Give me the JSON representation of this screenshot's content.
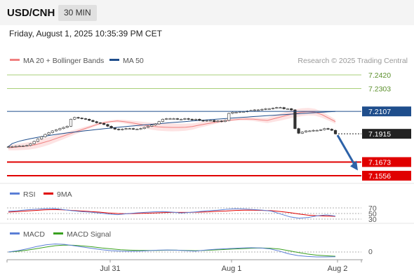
{
  "header": {
    "symbol": "USD/CNH",
    "timeframe": "30 MIN",
    "datetime": "Friday, August 1, 2025 10:35:39 PM CET"
  },
  "legend": {
    "ma20": "MA 20 + Bollinger Bands",
    "ma50": "MA 50",
    "credit": "Research © 2025 Trading Central"
  },
  "colors": {
    "ma20": "#f08080",
    "ma50": "#1f4e8c",
    "band_fill": "#fde3e3",
    "resistance": "#a8cf78",
    "support": "#e00000",
    "current": "#222222",
    "arrow": "#2d62a8",
    "rsi": "#5b7fd6",
    "rsi_ma": "#e00000",
    "macd": "#5b7fd6",
    "macd_signal": "#3aa020",
    "candle_up": "#3a9a3a",
    "candle_down": "#cc2222"
  },
  "price_levels": [
    {
      "label": "7.2420",
      "value": 7.242,
      "kind": "resistance"
    },
    {
      "label": "7.2303",
      "value": 7.2303,
      "kind": "resistance"
    },
    {
      "label": "7.2107",
      "value": 7.2107,
      "kind": "ma50"
    },
    {
      "label": "7.1915",
      "value": 7.1915,
      "kind": "current"
    },
    {
      "label": "7.1673",
      "value": 7.1673,
      "kind": "support"
    },
    {
      "label": "7.1556",
      "value": 7.1556,
      "kind": "support"
    }
  ],
  "rsi_panel": {
    "label": "RSI",
    "ma_label": "9MA",
    "levels": [
      "70",
      "50",
      "30"
    ]
  },
  "macd_panel": {
    "label": "MACD",
    "signal_label": "MACD Signal",
    "zero_label": "0"
  },
  "x_axis": {
    "labels": [
      "Jul 31",
      "Aug 1",
      "Aug 2"
    ]
  },
  "chart_data": {
    "type": "candlestick",
    "symbol": "USD/CNH",
    "timeframe": "30 MIN",
    "y_labels": [
      "7.2420",
      "7.2303",
      "7.2107",
      "7.1915",
      "7.1673",
      "7.1556"
    ],
    "x_labels": [
      "Jul 31",
      "Aug 1",
      "Aug 2"
    ],
    "close_series": [
      7.1804,
      7.1806,
      7.1808,
      7.181,
      7.1812,
      7.1815,
      7.183,
      7.185,
      7.187,
      7.189,
      7.191,
      7.1925,
      7.194,
      7.195,
      7.196,
      7.197,
      7.198,
      7.204,
      7.2055,
      7.205,
      7.2045,
      7.204,
      7.203,
      7.202,
      7.201,
      7.2005,
      7.1995,
      7.198,
      7.1965,
      7.1955,
      7.195,
      7.1955,
      7.196,
      7.196,
      7.1955,
      7.1955,
      7.196,
      7.197,
      7.198,
      7.199,
      7.2,
      7.202,
      7.204,
      7.2045,
      7.2045,
      7.2045,
      7.204,
      7.204,
      7.2045,
      7.204,
      7.2035,
      7.204,
      7.203,
      7.2025,
      7.203,
      7.203,
      7.202,
      7.2025,
      7.202,
      7.203,
      7.209,
      7.21,
      7.21,
      7.2105,
      7.2105,
      7.211,
      7.2115,
      7.212,
      7.212,
      7.2125,
      7.213,
      7.213,
      7.2135,
      7.214,
      7.214,
      7.213,
      7.213,
      7.212,
      7.196,
      7.192,
      7.193,
      7.194,
      7.194,
      7.1945,
      7.1945,
      7.195,
      7.196,
      7.1955,
      7.1945,
      7.1915
    ],
    "ma20_series": [
      7.1795,
      7.18,
      7.1805,
      7.1812,
      7.1822,
      7.1838,
      7.1855,
      7.1875,
      7.1895,
      7.1915,
      7.1935,
      7.1955,
      7.1975,
      7.1995,
      7.201,
      7.202,
      7.2025,
      7.202,
      7.201,
      7.2,
      7.199,
      7.198,
      7.1975,
      7.1972,
      7.197,
      7.197,
      7.1972,
      7.1978,
      7.199,
      7.2,
      7.201,
      7.202,
      7.2028,
      7.2035,
      7.204,
      7.2042,
      7.204,
      7.2035,
      7.203,
      7.2045,
      7.206,
      7.2075,
      7.209,
      7.21,
      7.2105,
      7.21,
      7.208,
      7.205,
      7.202
    ],
    "ma50_value_at_end": 7.2107,
    "current_price": 7.1915,
    "resistance": [
      7.242,
      7.2303
    ],
    "support": [
      7.1673,
      7.1556
    ],
    "forecast": "down",
    "rsi": {
      "levels": [
        70,
        50,
        30
      ],
      "series": [
        58,
        60,
        63,
        65,
        67,
        68,
        64,
        60,
        57,
        55,
        52,
        48,
        46,
        49,
        52,
        54,
        56,
        57,
        55,
        52,
        54,
        57,
        60,
        62,
        65,
        67,
        66,
        64,
        62,
        58,
        48,
        38,
        33,
        36,
        42,
        45,
        41
      ],
      "ma_series": [
        55,
        57,
        59,
        61,
        63,
        64,
        63,
        61,
        59,
        57,
        55,
        52,
        50,
        49,
        50,
        51,
        52,
        53,
        54,
        54,
        54,
        55,
        56,
        58,
        59,
        61,
        62,
        62,
        61,
        60,
        57,
        53,
        48,
        44,
        42,
        41,
        40
      ]
    },
    "macd": {
      "series": [
        0.0,
        0.6,
        1.4,
        2.4,
        3.2,
        3.6,
        3.4,
        2.8,
        2.2,
        1.6,
        1.0,
        0.6,
        0.4,
        0.3,
        0.4,
        0.6,
        0.8,
        0.9,
        0.8,
        0.6,
        0.4,
        0.8,
        1.2,
        1.4,
        1.6,
        1.8,
        1.9,
        1.8,
        1.4,
        0.4,
        -0.8,
        -1.6,
        -2.0,
        -2.2,
        -2.2,
        -2.1
      ],
      "signal_series": [
        0.0,
        0.3,
        0.8,
        1.5,
        2.2,
        2.8,
        3.1,
        3.0,
        2.7,
        2.3,
        1.8,
        1.4,
        1.0,
        0.8,
        0.7,
        0.7,
        0.7,
        0.8,
        0.8,
        0.7,
        0.6,
        0.7,
        0.9,
        1.1,
        1.3,
        1.5,
        1.7,
        1.8,
        1.7,
        1.3,
        0.6,
        -0.2,
        -0.9,
        -1.4,
        -1.7,
        -1.9
      ]
    }
  }
}
